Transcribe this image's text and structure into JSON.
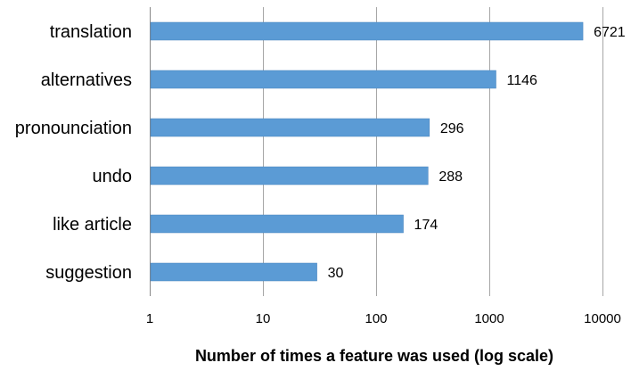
{
  "chart_data": {
    "type": "bar",
    "orientation": "horizontal",
    "categories": [
      "translation",
      "alternatives",
      "pronounciation",
      "undo",
      "like article",
      "suggestion"
    ],
    "values": [
      6721,
      1146,
      296,
      288,
      174,
      30
    ],
    "value_labels": [
      "6721",
      "1146",
      "296",
      "288",
      "174",
      "30"
    ],
    "title": "",
    "xlabel": "Number of times a feature was used (log scale)",
    "ylabel": "",
    "x_scale": "log",
    "xlim": [
      1,
      10000
    ],
    "x_ticks": [
      1,
      10,
      100,
      1000,
      10000
    ],
    "x_tick_labels": [
      "1",
      "10",
      "100",
      "1000",
      "10000"
    ],
    "grid": "vertical major gridlines",
    "legend": "none",
    "bar_color": "#5b9bd5",
    "gridline_color": "#a6a6a6"
  }
}
